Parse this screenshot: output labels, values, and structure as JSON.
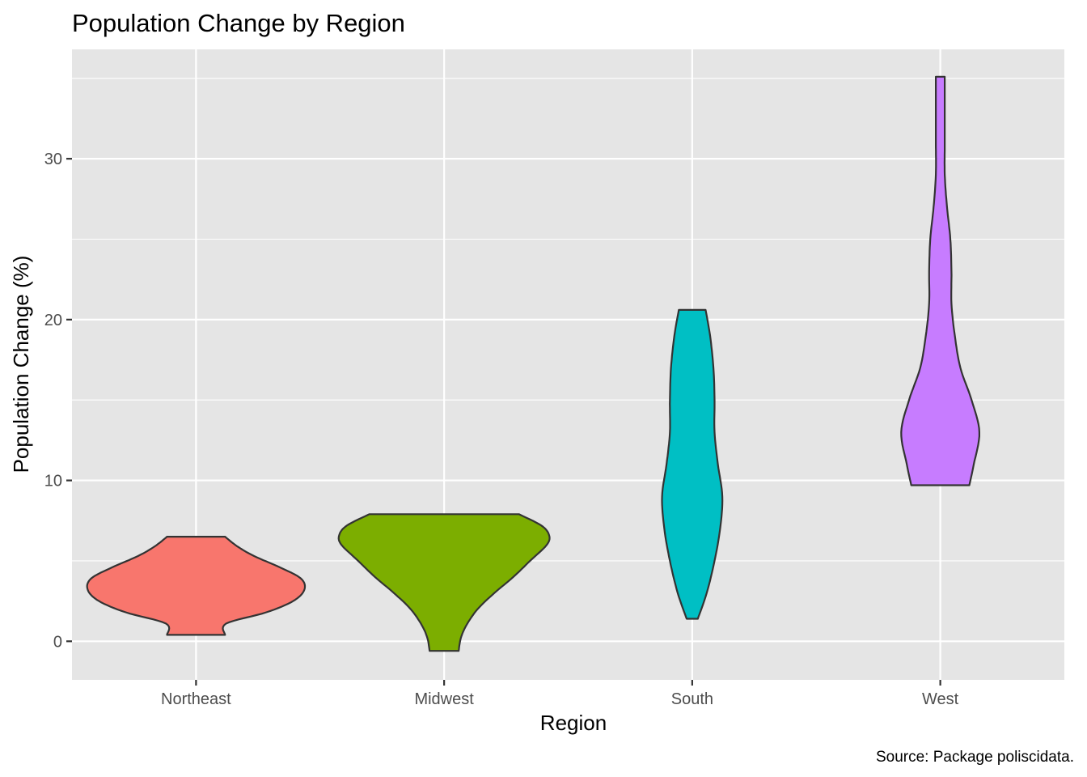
{
  "chart_data": {
    "type": "violin",
    "title": "Population Change by Region",
    "xlabel": "Region",
    "ylabel": "Population Change (%)",
    "caption": "Source: Package poliscidata.",
    "categories": [
      "Northeast",
      "Midwest",
      "South",
      "West"
    ],
    "colors": [
      "#F8766D",
      "#7CAE00",
      "#00BFC4",
      "#C77CFF"
    ],
    "ylim": [
      -2.4,
      36.8
    ],
    "yticks": [
      0,
      10,
      20,
      30
    ],
    "grid": true,
    "legend": "none",
    "series": [
      {
        "category": "Northeast",
        "min": 0.4,
        "max": 6.5,
        "density": [
          [
            0.4,
            0.26
          ],
          [
            1.1,
            0.27
          ],
          [
            1.8,
            0.63
          ],
          [
            2.5,
            0.87
          ],
          [
            3.2,
            0.97
          ],
          [
            3.9,
            0.94
          ],
          [
            4.6,
            0.75
          ],
          [
            5.3,
            0.52
          ],
          [
            5.9,
            0.37
          ],
          [
            6.5,
            0.26
          ]
        ]
      },
      {
        "category": "Midwest",
        "min": -0.6,
        "max": 7.9,
        "density": [
          [
            -0.6,
            0.13
          ],
          [
            0.2,
            0.15
          ],
          [
            1.0,
            0.2
          ],
          [
            2.0,
            0.3
          ],
          [
            3.0,
            0.45
          ],
          [
            4.0,
            0.62
          ],
          [
            5.0,
            0.77
          ],
          [
            6.0,
            0.92
          ],
          [
            6.6,
            0.94
          ],
          [
            7.2,
            0.87
          ],
          [
            7.9,
            0.67
          ]
        ]
      },
      {
        "category": "South",
        "min": 1.4,
        "max": 20.6,
        "density": [
          [
            1.4,
            0.05
          ],
          [
            3.0,
            0.13
          ],
          [
            5.0,
            0.2
          ],
          [
            7.0,
            0.25
          ],
          [
            9.0,
            0.27
          ],
          [
            11.0,
            0.23
          ],
          [
            13.0,
            0.2
          ],
          [
            15.0,
            0.2
          ],
          [
            17.0,
            0.19
          ],
          [
            19.0,
            0.16
          ],
          [
            20.6,
            0.12
          ]
        ]
      },
      {
        "category": "West",
        "min": 9.7,
        "max": 35.1,
        "density": [
          [
            9.7,
            0.26
          ],
          [
            11.0,
            0.3
          ],
          [
            13.0,
            0.35
          ],
          [
            15.0,
            0.28
          ],
          [
            17.0,
            0.18
          ],
          [
            19.0,
            0.13
          ],
          [
            21.0,
            0.1
          ],
          [
            23.0,
            0.1
          ],
          [
            25.0,
            0.09
          ],
          [
            27.0,
            0.06
          ],
          [
            29.0,
            0.04
          ],
          [
            31.0,
            0.04
          ],
          [
            33.0,
            0.04
          ],
          [
            35.1,
            0.04
          ]
        ]
      }
    ]
  }
}
